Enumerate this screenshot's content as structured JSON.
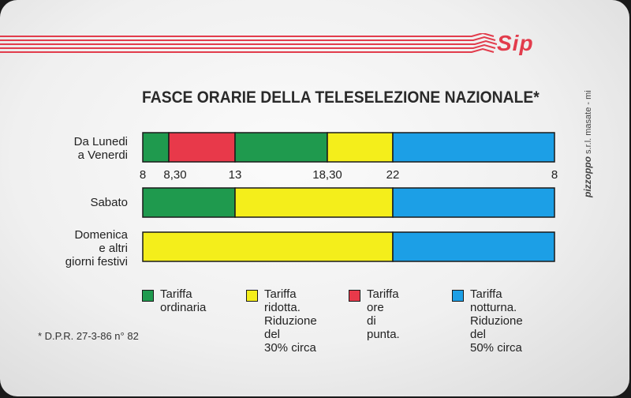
{
  "brand": {
    "logo": "SIP"
  },
  "title": "FASCE ORARIE DELLA TELESELEZIONE NAZIONALE*",
  "colors": {
    "ordinaria": "#1f9a4e",
    "ridotta": "#f4ee1b",
    "punta": "#e8394a",
    "notturna": "#1c9fe6",
    "stripe": "#e23c4c"
  },
  "chart_data": {
    "type": "bar",
    "orientation": "horizontal-timeline",
    "axis_ticks": [
      "8",
      "8,30",
      "13",
      "18,30",
      "22",
      "8"
    ],
    "rows": [
      {
        "label": "Da Lunedi\na Venerdi",
        "segments": [
          {
            "from": 8.0,
            "to": 8.5,
            "band": "ordinaria"
          },
          {
            "from": 8.5,
            "to": 13.0,
            "band": "punta"
          },
          {
            "from": 13.0,
            "to": 18.5,
            "band": "ordinaria"
          },
          {
            "from": 18.5,
            "to": 22.0,
            "band": "ridotta"
          },
          {
            "from": 22.0,
            "to": 32.0,
            "band": "notturna"
          }
        ]
      },
      {
        "label": "Sabato",
        "segments": [
          {
            "from": 8.0,
            "to": 13.0,
            "band": "ordinaria"
          },
          {
            "from": 13.0,
            "to": 22.0,
            "band": "ridotta"
          },
          {
            "from": 22.0,
            "to": 32.0,
            "band": "notturna"
          }
        ]
      },
      {
        "label": "Domenica\ne altri\ngiorni festivi",
        "segments": [
          {
            "from": 8.0,
            "to": 22.0,
            "band": "ridotta"
          },
          {
            "from": 22.0,
            "to": 32.0,
            "band": "notturna"
          }
        ]
      }
    ],
    "legend": [
      {
        "band": "ordinaria",
        "text": "Tariffa\nordinaria"
      },
      {
        "band": "ridotta",
        "text": "Tariffa\nridotta.\nRiduzione del\n30% circa"
      },
      {
        "band": "punta",
        "text": "Tariffa ore\ndi punta."
      },
      {
        "band": "notturna",
        "text": "Tariffa\nnotturna.\nRiduzione del\n50% circa"
      }
    ]
  },
  "footnote": "* D.P.R. 27-3-86 n° 82",
  "printer": {
    "name": "pizzoppo",
    "suffix": "s.r.l. masate - mi"
  }
}
